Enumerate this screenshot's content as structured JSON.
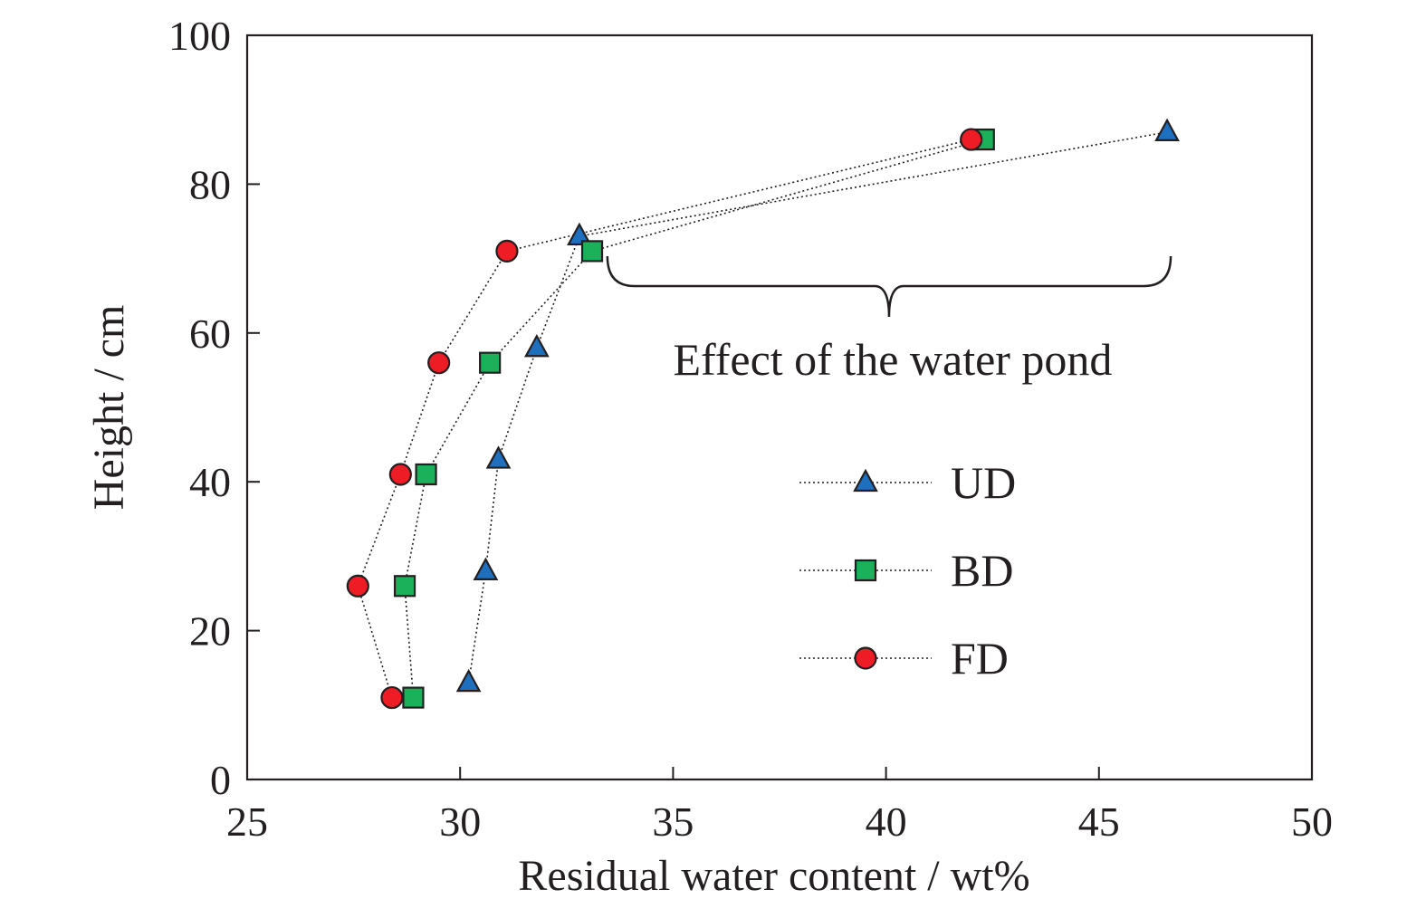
{
  "chart_data": {
    "type": "scatter",
    "xlabel": "Residual water content / wt%",
    "ylabel": "Height / cm",
    "xlim": [
      25,
      50
    ],
    "ylim": [
      0,
      100
    ],
    "xticks": [
      25,
      30,
      35,
      40,
      45,
      50
    ],
    "yticks": [
      0,
      20,
      40,
      60,
      80,
      100
    ],
    "grid": false,
    "legend_position": "center-right",
    "series": [
      {
        "name": "UD",
        "marker": "triangle",
        "color": "#1f6fbf",
        "points": [
          {
            "x": 30.2,
            "y": 13
          },
          {
            "x": 30.6,
            "y": 28
          },
          {
            "x": 30.9,
            "y": 43
          },
          {
            "x": 31.8,
            "y": 58
          },
          {
            "x": 32.8,
            "y": 73
          },
          {
            "x": 46.6,
            "y": 87
          }
        ]
      },
      {
        "name": "BD",
        "marker": "square",
        "color": "#1bb15a",
        "points": [
          {
            "x": 28.9,
            "y": 11
          },
          {
            "x": 28.7,
            "y": 26
          },
          {
            "x": 29.2,
            "y": 41
          },
          {
            "x": 30.7,
            "y": 56
          },
          {
            "x": 33.1,
            "y": 71
          },
          {
            "x": 42.3,
            "y": 86
          }
        ]
      },
      {
        "name": "FD",
        "marker": "circle",
        "color": "#ee1c25",
        "points": [
          {
            "x": 28.4,
            "y": 11
          },
          {
            "x": 27.6,
            "y": 26
          },
          {
            "x": 28.6,
            "y": 41
          },
          {
            "x": 29.5,
            "y": 56
          },
          {
            "x": 31.1,
            "y": 71
          },
          {
            "x": 42.0,
            "y": 86
          }
        ]
      }
    ],
    "annotations": [
      {
        "text": "Effect of the water pond",
        "brace_from_x": 33.5,
        "brace_to_x": 46.6,
        "brace_y": 70
      }
    ]
  }
}
